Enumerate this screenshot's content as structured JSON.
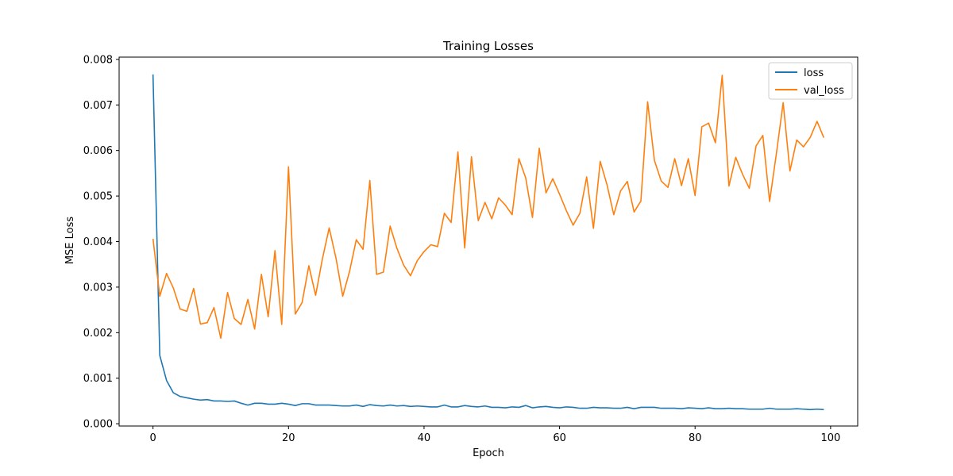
{
  "chart_data": {
    "type": "line",
    "title": "Training Losses",
    "xlabel": "Epoch",
    "ylabel": "MSE Loss",
    "xlim": [
      -5.0,
      104.0
    ],
    "ylim": [
      -5e-05,
      0.00805
    ],
    "xticks": [
      0,
      20,
      40,
      60,
      80,
      100
    ],
    "yticks": [
      0.0,
      0.001,
      0.002,
      0.003,
      0.004,
      0.005,
      0.006,
      0.007,
      0.008
    ],
    "xtick_labels": [
      "0",
      "20",
      "40",
      "60",
      "80",
      "100"
    ],
    "ytick_labels": [
      "0.000",
      "0.001",
      "0.002",
      "0.003",
      "0.004",
      "0.005",
      "0.006",
      "0.007",
      "0.008"
    ],
    "grid": false,
    "legend_position": "top-right",
    "x": [
      0,
      1,
      2,
      3,
      4,
      5,
      6,
      7,
      8,
      9,
      10,
      11,
      12,
      13,
      14,
      15,
      16,
      17,
      18,
      19,
      20,
      21,
      22,
      23,
      24,
      25,
      26,
      27,
      28,
      29,
      30,
      31,
      32,
      33,
      34,
      35,
      36,
      37,
      38,
      39,
      40,
      41,
      42,
      43,
      44,
      45,
      46,
      47,
      48,
      49,
      50,
      51,
      52,
      53,
      54,
      55,
      56,
      57,
      58,
      59,
      60,
      61,
      62,
      63,
      64,
      65,
      66,
      67,
      68,
      69,
      70,
      71,
      72,
      73,
      74,
      75,
      76,
      77,
      78,
      79,
      80,
      81,
      82,
      83,
      84,
      85,
      86,
      87,
      88,
      89,
      90,
      91,
      92,
      93,
      94,
      95,
      96,
      97,
      98,
      99
    ],
    "series": [
      {
        "name": "loss",
        "color": "#1f77b4",
        "values": [
          0.00767,
          0.0015,
          0.00095,
          0.00068,
          0.0006,
          0.00057,
          0.00054,
          0.00052,
          0.00053,
          0.0005,
          0.0005,
          0.00049,
          0.0005,
          0.00045,
          0.00041,
          0.00045,
          0.00045,
          0.00043,
          0.00043,
          0.00045,
          0.00043,
          0.0004,
          0.00044,
          0.00044,
          0.00041,
          0.00041,
          0.00041,
          0.0004,
          0.00039,
          0.00039,
          0.00041,
          0.00038,
          0.00042,
          0.0004,
          0.00039,
          0.00041,
          0.00039,
          0.0004,
          0.00038,
          0.00039,
          0.00038,
          0.00037,
          0.00037,
          0.00041,
          0.00037,
          0.00037,
          0.0004,
          0.00038,
          0.00037,
          0.00039,
          0.00036,
          0.00036,
          0.00035,
          0.00037,
          0.00036,
          0.0004,
          0.00035,
          0.00037,
          0.00038,
          0.00036,
          0.00035,
          0.00037,
          0.00036,
          0.00034,
          0.00034,
          0.00036,
          0.00035,
          0.00035,
          0.00034,
          0.00034,
          0.00036,
          0.00033,
          0.00036,
          0.00036,
          0.00036,
          0.00034,
          0.00034,
          0.00034,
          0.00033,
          0.00035,
          0.00034,
          0.00033,
          0.00035,
          0.00033,
          0.00033,
          0.00034,
          0.00033,
          0.00033,
          0.00032,
          0.00032,
          0.00032,
          0.00034,
          0.00032,
          0.00032,
          0.00032,
          0.00033,
          0.00032,
          0.00031,
          0.00032,
          0.00031
        ]
      },
      {
        "name": "val_loss",
        "color": "#ff7f0e",
        "values": [
          0.00406,
          0.0028,
          0.0033,
          0.00298,
          0.00252,
          0.00247,
          0.00297,
          0.00219,
          0.00222,
          0.00255,
          0.00188,
          0.00288,
          0.00231,
          0.00218,
          0.00273,
          0.00208,
          0.00328,
          0.00235,
          0.0038,
          0.00218,
          0.00564,
          0.00241,
          0.00266,
          0.00347,
          0.00282,
          0.00362,
          0.0043,
          0.00364,
          0.0028,
          0.00334,
          0.00404,
          0.00383,
          0.00534,
          0.00328,
          0.00333,
          0.00434,
          0.00385,
          0.00348,
          0.00325,
          0.00358,
          0.00378,
          0.00393,
          0.00389,
          0.00462,
          0.00442,
          0.00597,
          0.00386,
          0.00586,
          0.00446,
          0.00486,
          0.0045,
          0.00496,
          0.0048,
          0.00459,
          0.00582,
          0.0054,
          0.00453,
          0.00605,
          0.00507,
          0.00538,
          0.00504,
          0.00468,
          0.00436,
          0.00462,
          0.00542,
          0.00429,
          0.00576,
          0.00525,
          0.00459,
          0.00511,
          0.00532,
          0.00465,
          0.00489,
          0.00707,
          0.00578,
          0.00533,
          0.00519,
          0.00582,
          0.00523,
          0.00582,
          0.00501,
          0.00652,
          0.0066,
          0.00617,
          0.00765,
          0.00522,
          0.00585,
          0.00548,
          0.00517,
          0.0061,
          0.00633,
          0.00488,
          0.00593,
          0.00705,
          0.00555,
          0.00623,
          0.00608,
          0.00629,
          0.00664,
          0.00628
        ]
      }
    ]
  }
}
